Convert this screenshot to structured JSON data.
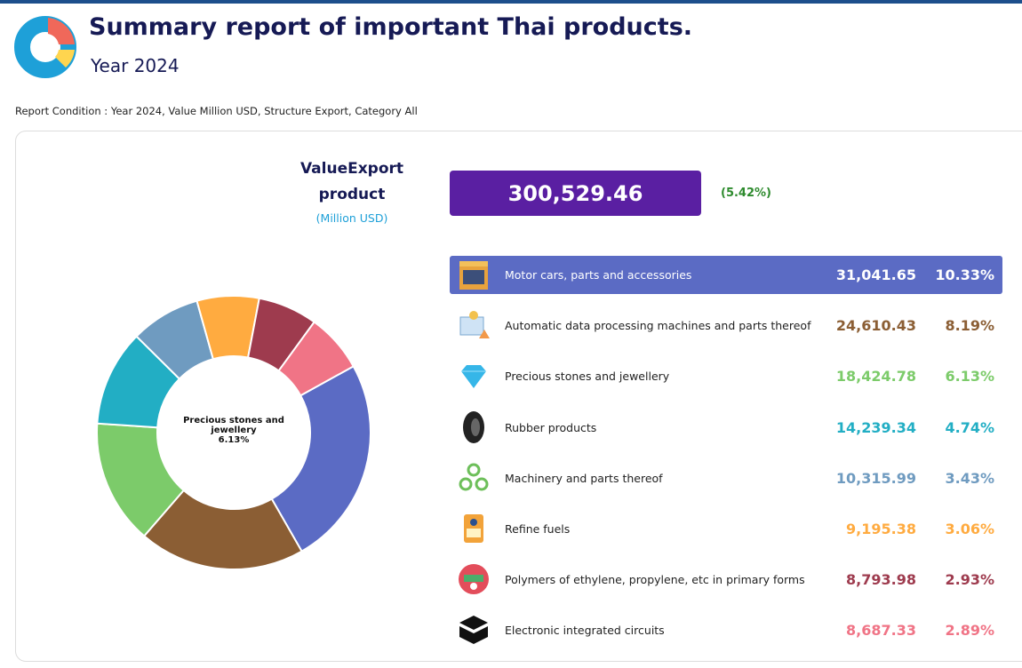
{
  "header": {
    "title": "Summary report of important Thai products.",
    "subtitle": "Year 2024"
  },
  "report_condition": "Report Condition : Year 2024, Value Million USD, Structure Export, Category All",
  "summary": {
    "label_line1": "ValueExport",
    "label_line2": "product",
    "unit": "(Million USD)",
    "total": 300529.46,
    "total_label": "300,529.46",
    "change": 5.42,
    "change_label": "(5.42%)"
  },
  "products": [
    {
      "name": "Motor cars, parts and accessories",
      "value": 31041.65,
      "value_label": "31,041.65",
      "share": 10.33,
      "share_label": "10.33%",
      "color": "#5b6bc4"
    },
    {
      "name": "Automatic data processing machines and parts thereof",
      "value": 24610.43,
      "value_label": "24,610.43",
      "share": 8.19,
      "share_label": "8.19%",
      "color": "#8b5e34"
    },
    {
      "name": "Precious stones and jewellery",
      "value": 18424.78,
      "value_label": "18,424.78",
      "share": 6.13,
      "share_label": "6.13%",
      "color": "#7ccb6a"
    },
    {
      "name": "Rubber products",
      "value": 14239.34,
      "value_label": "14,239.34",
      "share": 4.74,
      "share_label": "4.74%",
      "color": "#22aec4"
    },
    {
      "name": "Machinery and parts thereof",
      "value": 10315.99,
      "value_label": "10,315.99",
      "share": 3.43,
      "share_label": "3.43%",
      "color": "#6f9bc0"
    },
    {
      "name": "Refine fuels",
      "value": 9195.38,
      "value_label": "9,195.38",
      "share": 3.06,
      "share_label": "3.06%",
      "color": "#ffab40"
    },
    {
      "name": "Polymers of ethylene, propylene, etc in primary forms",
      "value": 8793.98,
      "value_label": "8,793.98",
      "share": 2.93,
      "share_label": "2.93%",
      "color": "#9e3b4e"
    },
    {
      "name": "Electronic integrated circuits",
      "value": 8687.33,
      "value_label": "8,687.33",
      "share": 2.89,
      "share_label": "2.89%",
      "color": "#f07486"
    }
  ]
}
